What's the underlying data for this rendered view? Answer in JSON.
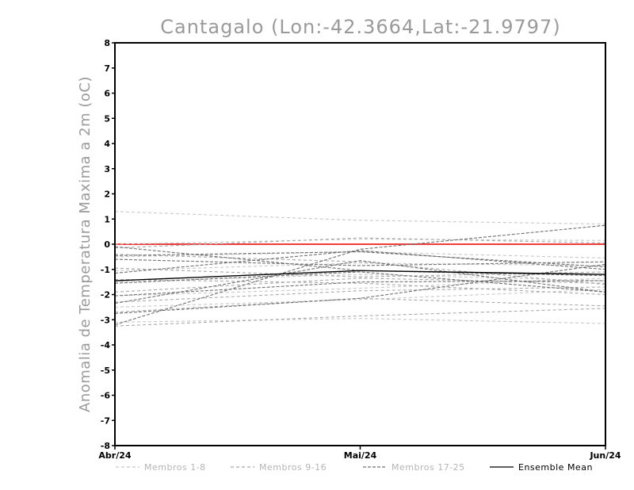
{
  "chart_data": {
    "type": "line",
    "title": "Cantagalo (Lon:-42.3664,Lat:-21.9797)",
    "ylabel": "Anomalia de Temperatura Maxima a 2m (oC)",
    "xlabel": "",
    "x": [
      "Abr/24",
      "Mai/24",
      "Jun/24"
    ],
    "ylim": [
      -8,
      8
    ],
    "yticks": [
      "8",
      "7",
      "6",
      "5",
      "4",
      "3",
      "2",
      "1",
      "0",
      "-1",
      "-2",
      "-3",
      "-4",
      "-5",
      "-6",
      "-7",
      "-8"
    ],
    "ytick_values": [
      8,
      7,
      6,
      5,
      4,
      3,
      2,
      1,
      0,
      -1,
      -2,
      -3,
      -4,
      -5,
      -6,
      -7,
      -8
    ],
    "grid": false,
    "zero_line_color": "#ef3b3b",
    "groups": [
      {
        "name": "Membros 1-8",
        "color": "#c8c8c8",
        "dash": "4,3",
        "series": [
          [
            1.3,
            0.95,
            0.8
          ],
          [
            0.0,
            0.2,
            0.15
          ],
          [
            -0.5,
            -0.3,
            -0.55
          ],
          [
            -1.05,
            -0.75,
            -0.85
          ],
          [
            -1.5,
            -1.2,
            -1.45
          ],
          [
            -2.05,
            -1.75,
            -1.35
          ],
          [
            -2.5,
            -2.2,
            -1.8
          ],
          [
            -3.1,
            -2.95,
            -3.15
          ]
        ]
      },
      {
        "name": "Membros 9-16",
        "color": "#a9a9a9",
        "dash": "4,3",
        "series": [
          [
            -0.15,
            0.25,
            0.05
          ],
          [
            -0.4,
            -0.7,
            -1.6
          ],
          [
            -0.95,
            -1.3,
            -1.1
          ],
          [
            -1.4,
            -1.55,
            -2.0
          ],
          [
            -1.9,
            -1.35,
            -1.55
          ],
          [
            -2.3,
            -1.85,
            -1.7
          ],
          [
            -2.7,
            -2.15,
            -2.45
          ],
          [
            -3.25,
            -2.85,
            -2.55
          ]
        ]
      },
      {
        "name": "Membros 17-25",
        "color": "#707070",
        "dash": "4,2",
        "series": [
          [
            -0.1,
            -1.05,
            -1.25
          ],
          [
            -0.45,
            -0.3,
            -0.9
          ],
          [
            -0.6,
            -0.85,
            -0.7
          ],
          [
            -1.15,
            -0.25,
            -1.0
          ],
          [
            -1.55,
            -1.1,
            -1.9
          ],
          [
            -2.05,
            -1.5,
            -1.45
          ],
          [
            -2.35,
            -0.65,
            -1.9
          ],
          [
            -2.75,
            -2.15,
            -0.8
          ],
          [
            -3.2,
            -0.2,
            0.75
          ]
        ]
      }
    ],
    "ensemble_mean": {
      "name": "Ensemble Mean",
      "color": "#000000",
      "values": [
        -1.45,
        -1.05,
        -1.2
      ]
    },
    "legend_position": "bottom"
  }
}
